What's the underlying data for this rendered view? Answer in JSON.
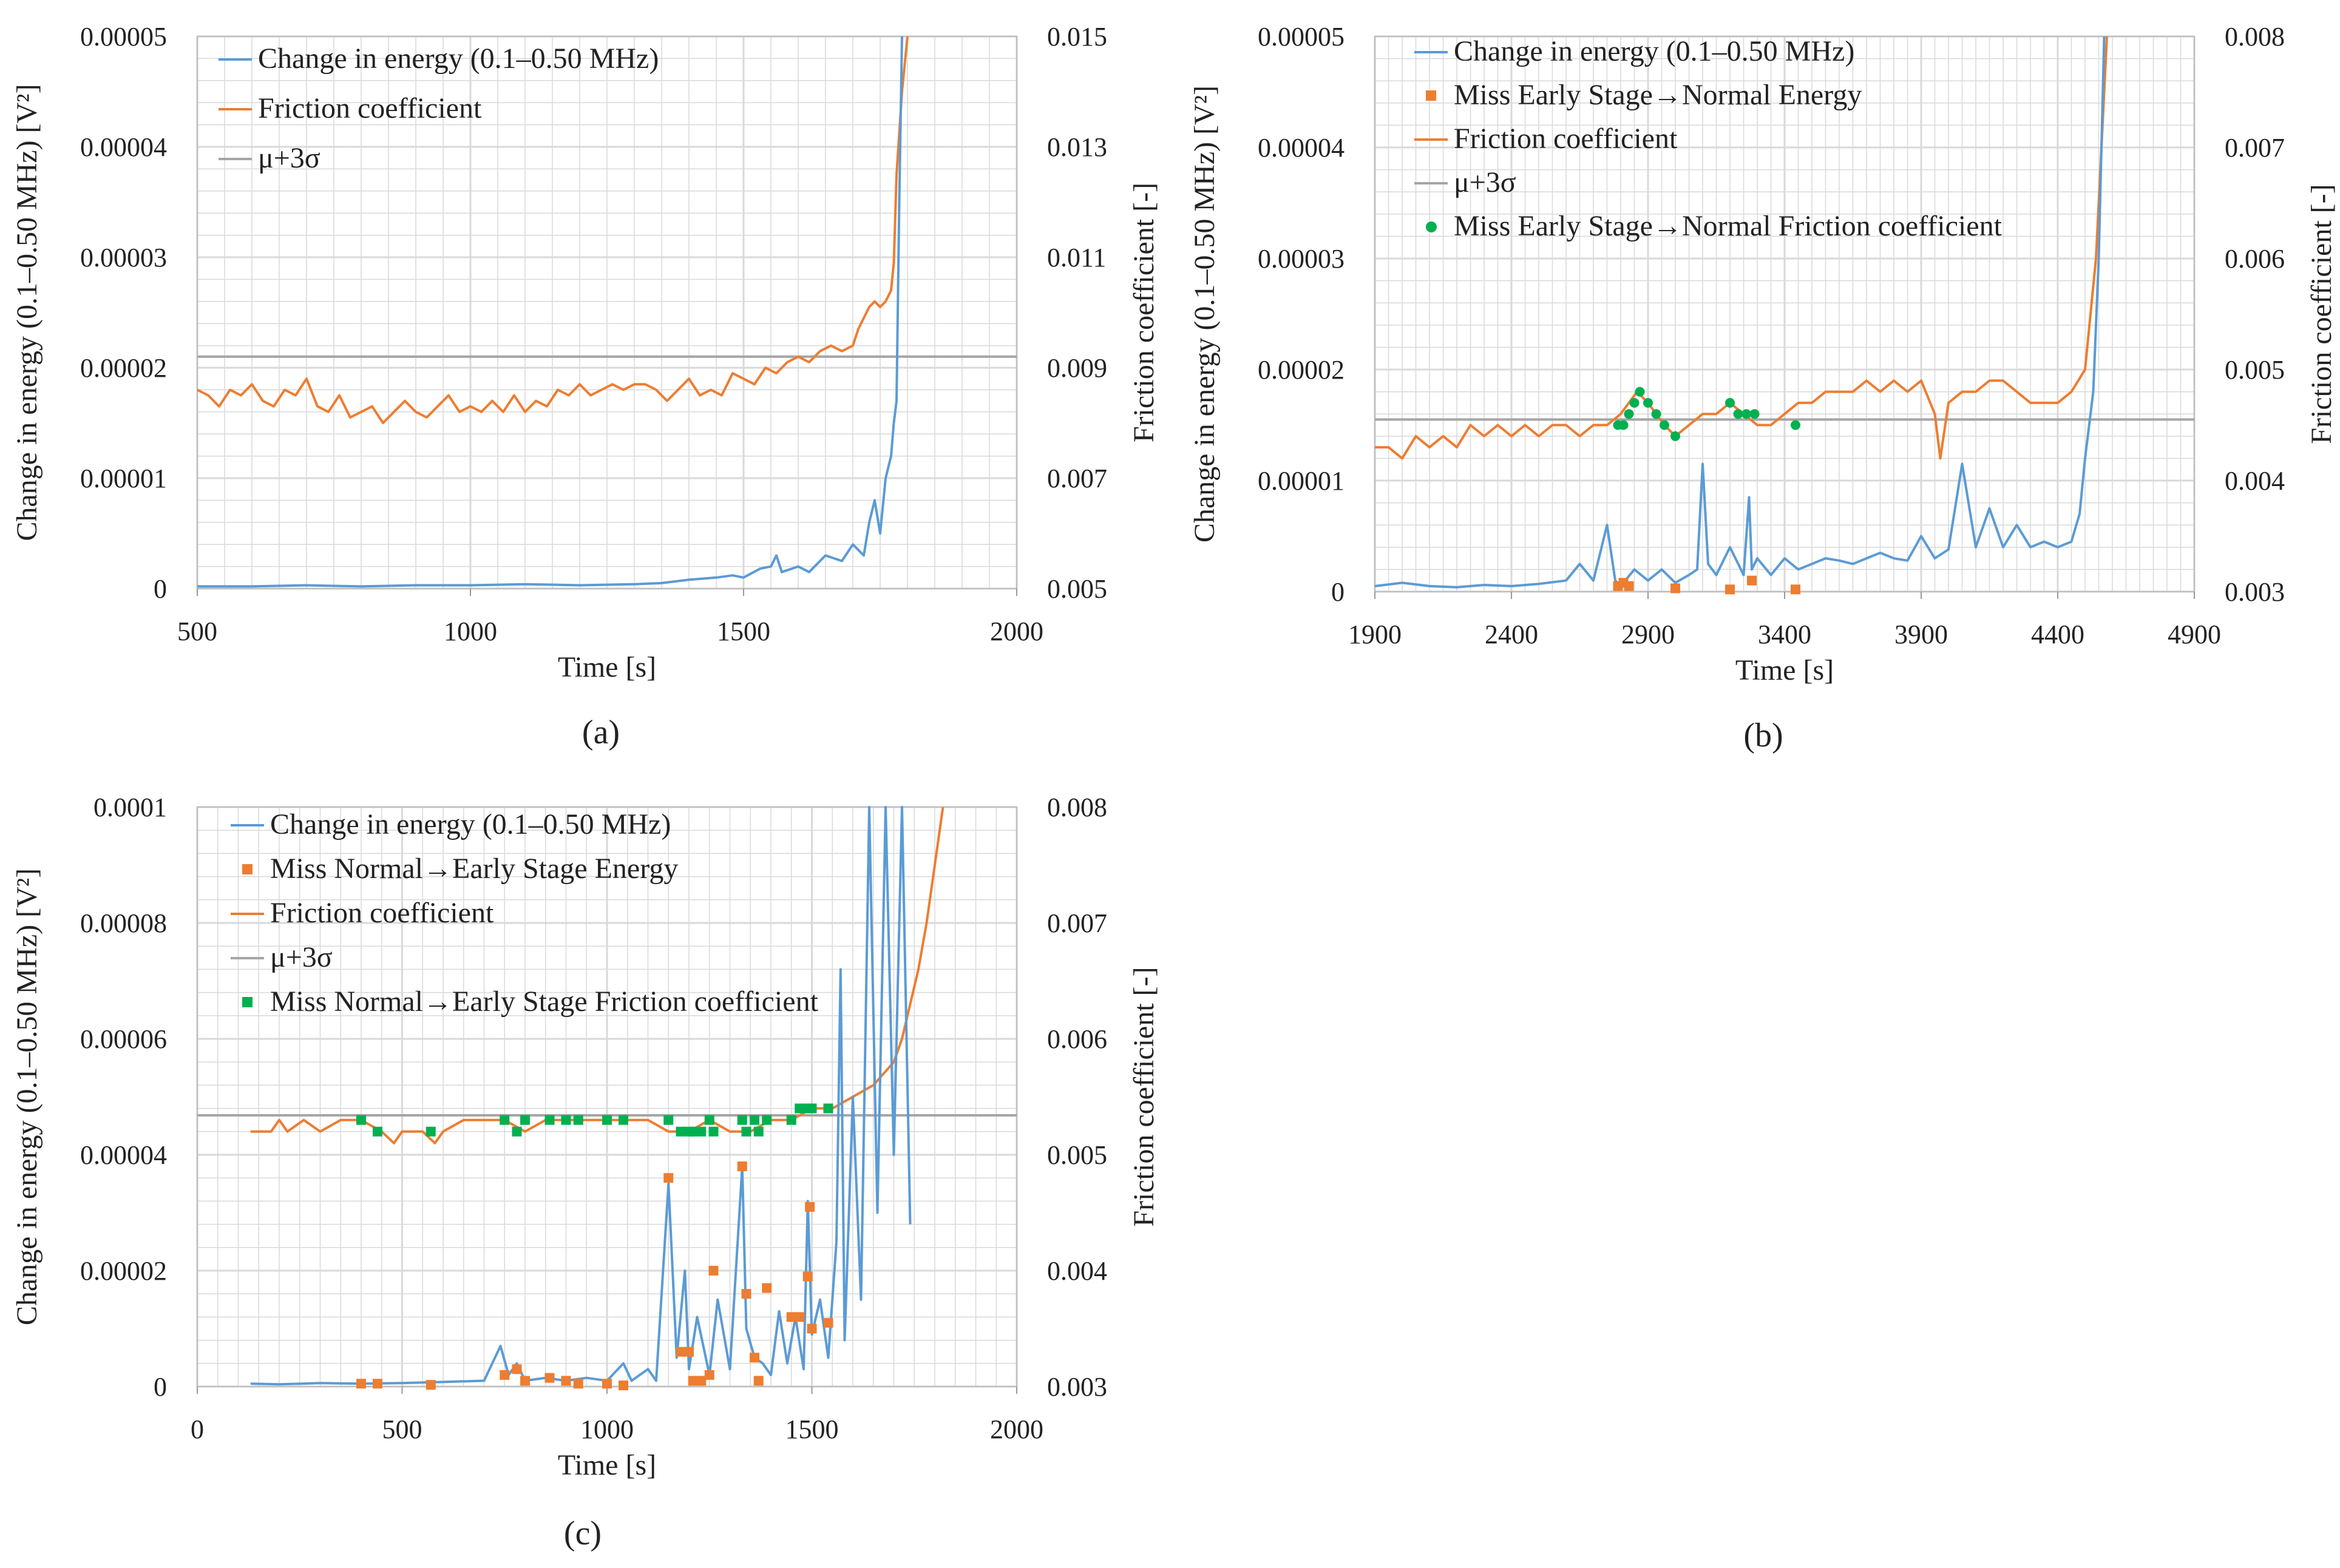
{
  "colors": {
    "energy": "#5b9bd5",
    "friction": "#ed7d31",
    "threshold": "#a5a5a5",
    "miss_energy": "#ed7d31",
    "miss_friction": "#00b050",
    "grid": "#d9d9d9"
  },
  "chart_data": [
    {
      "id": "a",
      "caption": "(a)",
      "type": "line",
      "xlabel": "Time [s]",
      "ylabel": "Change in energy (0.1–0.50 MHz) [V²]",
      "y2label": "Friction coefficient  [-]",
      "xlim": [
        500,
        2000
      ],
      "xticks": [
        500,
        1000,
        1500,
        2000
      ],
      "xtick_labels": [
        "500",
        "1000",
        "1500",
        "2000"
      ],
      "ylim": [
        0,
        5e-05
      ],
      "yticks": [
        0,
        1e-05,
        2e-05,
        3e-05,
        4e-05,
        5e-05
      ],
      "ytick_labels": [
        "0",
        "0.00001",
        "0.00002",
        "0.00003",
        "0.00004",
        "0.00005"
      ],
      "y2lim": [
        0.005,
        0.015
      ],
      "y2ticks": [
        0.005,
        0.007,
        0.009,
        0.011,
        0.013,
        0.015
      ],
      "y2tick_labels": [
        "0.005",
        "0.007",
        "0.009",
        "0.011",
        "0.013",
        "0.015"
      ],
      "threshold": 2.1e-05,
      "legend": [
        {
          "label": "Change in energy (0.1–0.50 MHz)",
          "kind": "line",
          "color": "#5b9bd5"
        },
        {
          "label": "Friction coefficient",
          "kind": "line",
          "color": "#ed7d31"
        },
        {
          "label": "μ+3σ",
          "kind": "line",
          "color": "#a5a5a5"
        }
      ],
      "energy": {
        "x": [
          500,
          600,
          700,
          800,
          900,
          1000,
          1100,
          1200,
          1300,
          1350,
          1400,
          1450,
          1480,
          1500,
          1530,
          1550,
          1560,
          1570,
          1600,
          1620,
          1650,
          1680,
          1700,
          1720,
          1730,
          1740,
          1750,
          1760,
          1770,
          1775,
          1780,
          1785,
          1790
        ],
        "y": [
          2e-07,
          2e-07,
          3e-07,
          2e-07,
          3e-07,
          3e-07,
          4e-07,
          3e-07,
          4e-07,
          5e-07,
          8e-07,
          1e-06,
          1.2e-06,
          1e-06,
          1.8e-06,
          2e-06,
          3e-06,
          1.5e-06,
          2e-06,
          1.5e-06,
          3e-06,
          2.5e-06,
          4e-06,
          3e-06,
          6e-06,
          8e-06,
          5e-06,
          1e-05,
          1.2e-05,
          1.5e-05,
          1.7e-05,
          3.5e-05,
          5e-05
        ]
      },
      "friction": {
        "x": [
          500,
          520,
          540,
          560,
          580,
          600,
          620,
          640,
          660,
          680,
          700,
          720,
          740,
          760,
          780,
          800,
          820,
          840,
          860,
          880,
          900,
          920,
          940,
          960,
          980,
          1000,
          1020,
          1040,
          1060,
          1080,
          1100,
          1120,
          1140,
          1160,
          1180,
          1200,
          1220,
          1240,
          1260,
          1280,
          1300,
          1320,
          1340,
          1360,
          1380,
          1400,
          1420,
          1440,
          1460,
          1480,
          1500,
          1520,
          1540,
          1560,
          1580,
          1600,
          1620,
          1640,
          1660,
          1680,
          1700,
          1710,
          1720,
          1730,
          1740,
          1750,
          1760,
          1770,
          1775,
          1780,
          1790,
          1800
        ],
        "y": [
          0.0086,
          0.0085,
          0.0083,
          0.0086,
          0.0085,
          0.0087,
          0.0084,
          0.0083,
          0.0086,
          0.0085,
          0.0088,
          0.0083,
          0.0082,
          0.0085,
          0.0081,
          0.0082,
          0.0083,
          0.008,
          0.0082,
          0.0084,
          0.0082,
          0.0081,
          0.0083,
          0.0085,
          0.0082,
          0.0083,
          0.0082,
          0.0084,
          0.0082,
          0.0085,
          0.0082,
          0.0084,
          0.0083,
          0.0086,
          0.0085,
          0.0087,
          0.0085,
          0.0086,
          0.0087,
          0.0086,
          0.0087,
          0.0087,
          0.0086,
          0.0084,
          0.0086,
          0.0088,
          0.0085,
          0.0086,
          0.0085,
          0.0089,
          0.0088,
          0.0087,
          0.009,
          0.0089,
          0.0091,
          0.0092,
          0.0091,
          0.0093,
          0.0094,
          0.0093,
          0.0094,
          0.0097,
          0.0099,
          0.0101,
          0.0102,
          0.0101,
          0.0102,
          0.0104,
          0.0109,
          0.0125,
          0.014,
          0.015
        ]
      }
    },
    {
      "id": "b",
      "caption": "(b)",
      "type": "line",
      "xlabel": "Time [s]",
      "ylabel": "Change in energy (0.1–0.50 MHz) [V²]",
      "y2label": "Friction coefficient  [-]",
      "xlim": [
        1900,
        4900
      ],
      "xticks": [
        1900,
        2400,
        2900,
        3400,
        3900,
        4400,
        4900
      ],
      "xtick_labels": [
        "1900",
        "2400",
        "2900",
        "3400",
        "3900",
        "4400",
        "4900"
      ],
      "ylim": [
        0,
        5e-05
      ],
      "yticks": [
        0,
        1e-05,
        2e-05,
        3e-05,
        4e-05,
        5e-05
      ],
      "ytick_labels": [
        "0",
        "0.00001",
        "0.00002",
        "0.00003",
        "0.00004",
        "0.00005"
      ],
      "y2lim": [
        0.003,
        0.008
      ],
      "y2ticks": [
        0.003,
        0.004,
        0.005,
        0.006,
        0.007,
        0.008
      ],
      "y2tick_labels": [
        "0.003",
        "0.004",
        "0.005",
        "0.006",
        "0.007",
        "0.008"
      ],
      "threshold": 1.55e-05,
      "legend": [
        {
          "label": "Change in energy (0.1–0.50 MHz)",
          "kind": "line",
          "color": "#5b9bd5"
        },
        {
          "label": "Miss Early Stage→Normal Energy",
          "kind": "square",
          "color": "#ed7d31"
        },
        {
          "label": "Friction coefficient",
          "kind": "line",
          "color": "#ed7d31"
        },
        {
          "label": "μ+3σ",
          "kind": "line",
          "color": "#a5a5a5"
        },
        {
          "label": "Miss Early Stage→Normal Friction coefficient",
          "kind": "dot",
          "color": "#00b050"
        }
      ],
      "energy": {
        "x": [
          1900,
          2000,
          2100,
          2200,
          2300,
          2400,
          2500,
          2600,
          2650,
          2700,
          2750,
          2780,
          2800,
          2850,
          2900,
          2950,
          3000,
          3050,
          3080,
          3100,
          3120,
          3150,
          3200,
          3250,
          3270,
          3280,
          3300,
          3350,
          3400,
          3450,
          3500,
          3550,
          3600,
          3650,
          3700,
          3750,
          3800,
          3850,
          3900,
          3950,
          4000,
          4050,
          4100,
          4150,
          4200,
          4250,
          4300,
          4350,
          4400,
          4450,
          4480,
          4500,
          4530,
          4550,
          4570
        ],
        "y": [
          5e-07,
          8e-07,
          5e-07,
          4e-07,
          6e-07,
          5e-07,
          7e-07,
          1e-06,
          2.5e-06,
          1e-06,
          6e-06,
          1e-06,
          5e-07,
          2e-06,
          1e-06,
          2e-06,
          8e-07,
          1.5e-06,
          2e-06,
          1.15e-05,
          2.5e-06,
          1.5e-06,
          4e-06,
          1.5e-06,
          8.5e-06,
          2e-06,
          3e-06,
          1.5e-06,
          3e-06,
          2e-06,
          2.5e-06,
          3e-06,
          2.8e-06,
          2.5e-06,
          3e-06,
          3.5e-06,
          3e-06,
          2.8e-06,
          5e-06,
          3e-06,
          3.8e-06,
          1.15e-05,
          4e-06,
          7.5e-06,
          4e-06,
          6e-06,
          4e-06,
          4.5e-06,
          4e-06,
          4.5e-06,
          7e-06,
          1.2e-05,
          1.8e-05,
          3e-05,
          5e-05
        ]
      },
      "friction": {
        "x": [
          1900,
          1950,
          2000,
          2050,
          2100,
          2150,
          2200,
          2250,
          2300,
          2350,
          2400,
          2450,
          2500,
          2550,
          2600,
          2650,
          2700,
          2750,
          2800,
          2830,
          2860,
          2900,
          2930,
          2960,
          3000,
          3050,
          3100,
          3150,
          3200,
          3250,
          3300,
          3350,
          3400,
          3450,
          3500,
          3550,
          3600,
          3650,
          3700,
          3750,
          3800,
          3850,
          3900,
          3950,
          3970,
          4000,
          4050,
          4100,
          4150,
          4200,
          4250,
          4300,
          4350,
          4400,
          4450,
          4500,
          4520,
          4540,
          4560,
          4580
        ],
        "y": [
          0.0043,
          0.0043,
          0.0042,
          0.0044,
          0.0043,
          0.0044,
          0.0043,
          0.0045,
          0.0044,
          0.0045,
          0.0044,
          0.0045,
          0.0044,
          0.0045,
          0.0045,
          0.0044,
          0.0045,
          0.0045,
          0.0046,
          0.0047,
          0.0048,
          0.0047,
          0.0046,
          0.0045,
          0.0044,
          0.0045,
          0.0046,
          0.0046,
          0.0047,
          0.0046,
          0.0045,
          0.0045,
          0.0046,
          0.0047,
          0.0047,
          0.0048,
          0.0048,
          0.0048,
          0.0049,
          0.0048,
          0.0049,
          0.0048,
          0.0049,
          0.0046,
          0.0042,
          0.0047,
          0.0048,
          0.0048,
          0.0049,
          0.0049,
          0.0048,
          0.0047,
          0.0047,
          0.0047,
          0.0048,
          0.005,
          0.0055,
          0.006,
          0.007,
          0.008
        ]
      },
      "miss_energy": {
        "x": [
          2790,
          2810,
          2830,
          3000,
          3200,
          3280,
          3440
        ],
        "y": [
          5e-07,
          8e-07,
          5e-07,
          3e-07,
          2e-07,
          1e-06,
          2e-07
        ]
      },
      "miss_friction": {
        "x": [
          2790,
          2810,
          2830,
          2850,
          2870,
          2900,
          2930,
          2960,
          3000,
          3200,
          3230,
          3260,
          3290,
          3440
        ],
        "y": [
          0.0045,
          0.0045,
          0.0046,
          0.0047,
          0.0048,
          0.0047,
          0.0046,
          0.0045,
          0.0044,
          0.0047,
          0.0046,
          0.0046,
          0.0046,
          0.0045
        ]
      }
    },
    {
      "id": "c",
      "caption": "(c)",
      "type": "line",
      "xlabel": "Time [s]",
      "ylabel": "Change in energy (0.1–0.50 MHz) [V²]",
      "y2label": "Friction coefficient  [-]",
      "xlim": [
        0,
        2000
      ],
      "xticks": [
        0,
        500,
        1000,
        1500,
        2000
      ],
      "xtick_labels": [
        "0",
        "500",
        "1000",
        "1500",
        "2000"
      ],
      "ylim": [
        0,
        0.0001
      ],
      "yticks": [
        0,
        2e-05,
        4e-05,
        6e-05,
        8e-05,
        0.0001
      ],
      "ytick_labels": [
        "0",
        "0.00002",
        "0.00004",
        "0.00006",
        "0.00008",
        "0.0001"
      ],
      "y2lim": [
        0.003,
        0.008
      ],
      "y2ticks": [
        0.003,
        0.004,
        0.005,
        0.006,
        0.007,
        0.008
      ],
      "y2tick_labels": [
        "0.003",
        "0.004",
        "0.005",
        "0.006",
        "0.007",
        "0.008"
      ],
      "threshold": 4.68e-05,
      "legend": [
        {
          "label": "Change in energy (0.1–0.50 MHz)",
          "kind": "line",
          "color": "#5b9bd5"
        },
        {
          "label": "Miss Normal→Early Stage Energy",
          "kind": "square",
          "color": "#ed7d31"
        },
        {
          "label": "Friction coefficient",
          "kind": "line",
          "color": "#ed7d31"
        },
        {
          "label": "μ+3σ",
          "kind": "line",
          "color": "#a5a5a5"
        },
        {
          "label": "Miss Normal→Early Stage Friction coefficient",
          "kind": "square",
          "color": "#00b050"
        }
      ],
      "energy": {
        "x": [
          130,
          200,
          300,
          400,
          500,
          600,
          700,
          740,
          760,
          780,
          800,
          850,
          900,
          950,
          1000,
          1040,
          1060,
          1100,
          1120,
          1150,
          1170,
          1190,
          1200,
          1220,
          1250,
          1270,
          1300,
          1330,
          1340,
          1360,
          1380,
          1400,
          1420,
          1440,
          1460,
          1480,
          1490,
          1500,
          1520,
          1540,
          1560,
          1570,
          1580,
          1600,
          1620,
          1640,
          1660,
          1680,
          1700,
          1720,
          1740
        ],
        "y": [
          5e-07,
          4e-07,
          6e-07,
          5e-07,
          6e-07,
          8e-07,
          1e-06,
          7e-06,
          2e-06,
          4e-06,
          1e-06,
          1.5e-06,
          1e-06,
          1.5e-06,
          1e-06,
          4e-06,
          1e-06,
          3e-06,
          1e-06,
          3.5e-05,
          5e-06,
          2e-05,
          3e-06,
          1.2e-05,
          2e-06,
          1.5e-05,
          3e-06,
          3.8e-05,
          1e-05,
          5e-06,
          4e-06,
          2e-06,
          1.3e-05,
          4e-06,
          1.2e-05,
          3e-06,
          3.2e-05,
          9e-06,
          1.5e-05,
          5e-06,
          2.5e-05,
          7.2e-05,
          8e-06,
          5e-05,
          1.5e-05,
          0.0001,
          3e-05,
          0.0001,
          4e-05,
          0.0001,
          2.8e-05
        ]
      },
      "friction": {
        "x": [
          130,
          180,
          200,
          220,
          260,
          300,
          350,
          400,
          450,
          480,
          500,
          550,
          580,
          600,
          650,
          700,
          750,
          800,
          850,
          900,
          950,
          1000,
          1050,
          1100,
          1150,
          1200,
          1250,
          1300,
          1350,
          1400,
          1450,
          1500,
          1550,
          1600,
          1650,
          1700,
          1720,
          1740,
          1760,
          1780,
          1800,
          1820
        ],
        "y": [
          0.0052,
          0.0052,
          0.0053,
          0.0052,
          0.0053,
          0.0052,
          0.0053,
          0.0053,
          0.0052,
          0.0051,
          0.0052,
          0.0052,
          0.0051,
          0.0052,
          0.0053,
          0.0053,
          0.0053,
          0.0052,
          0.0053,
          0.0053,
          0.0053,
          0.0053,
          0.0053,
          0.0053,
          0.0052,
          0.0052,
          0.0053,
          0.0052,
          0.0052,
          0.0053,
          0.0053,
          0.0054,
          0.0054,
          0.0055,
          0.0056,
          0.0058,
          0.006,
          0.0063,
          0.0066,
          0.007,
          0.0075,
          0.008
        ]
      },
      "miss_energy": {
        "x": [
          400,
          440,
          570,
          750,
          780,
          800,
          860,
          900,
          930,
          1000,
          1040,
          1150,
          1180,
          1200,
          1210,
          1230,
          1250,
          1260,
          1330,
          1340,
          1360,
          1370,
          1390,
          1450,
          1470,
          1490,
          1495,
          1500,
          1540
        ],
        "y": [
          5e-07,
          5e-07,
          3e-07,
          2e-06,
          3e-06,
          1e-06,
          1.5e-06,
          1e-06,
          5e-07,
          5e-07,
          2e-07,
          3.6e-05,
          6e-06,
          6e-06,
          1e-06,
          1e-06,
          2e-06,
          2e-05,
          3.8e-05,
          1.6e-05,
          5e-06,
          1e-06,
          1.7e-05,
          1.2e-05,
          1.2e-05,
          1.9e-05,
          3.1e-05,
          1e-05,
          1.1e-05
        ]
      },
      "miss_friction": {
        "x": [
          400,
          440,
          570,
          750,
          780,
          800,
          860,
          900,
          930,
          1000,
          1040,
          1150,
          1180,
          1200,
          1210,
          1230,
          1250,
          1260,
          1330,
          1340,
          1360,
          1370,
          1390,
          1450,
          1470,
          1490,
          1500,
          1540
        ],
        "y": [
          0.0053,
          0.0052,
          0.0052,
          0.0053,
          0.0052,
          0.0053,
          0.0053,
          0.0053,
          0.0053,
          0.0053,
          0.0053,
          0.0053,
          0.0052,
          0.0052,
          0.0052,
          0.0052,
          0.0053,
          0.0052,
          0.0053,
          0.0052,
          0.0053,
          0.0052,
          0.0053,
          0.0053,
          0.0054,
          0.0054,
          0.0054,
          0.0054
        ]
      }
    }
  ]
}
